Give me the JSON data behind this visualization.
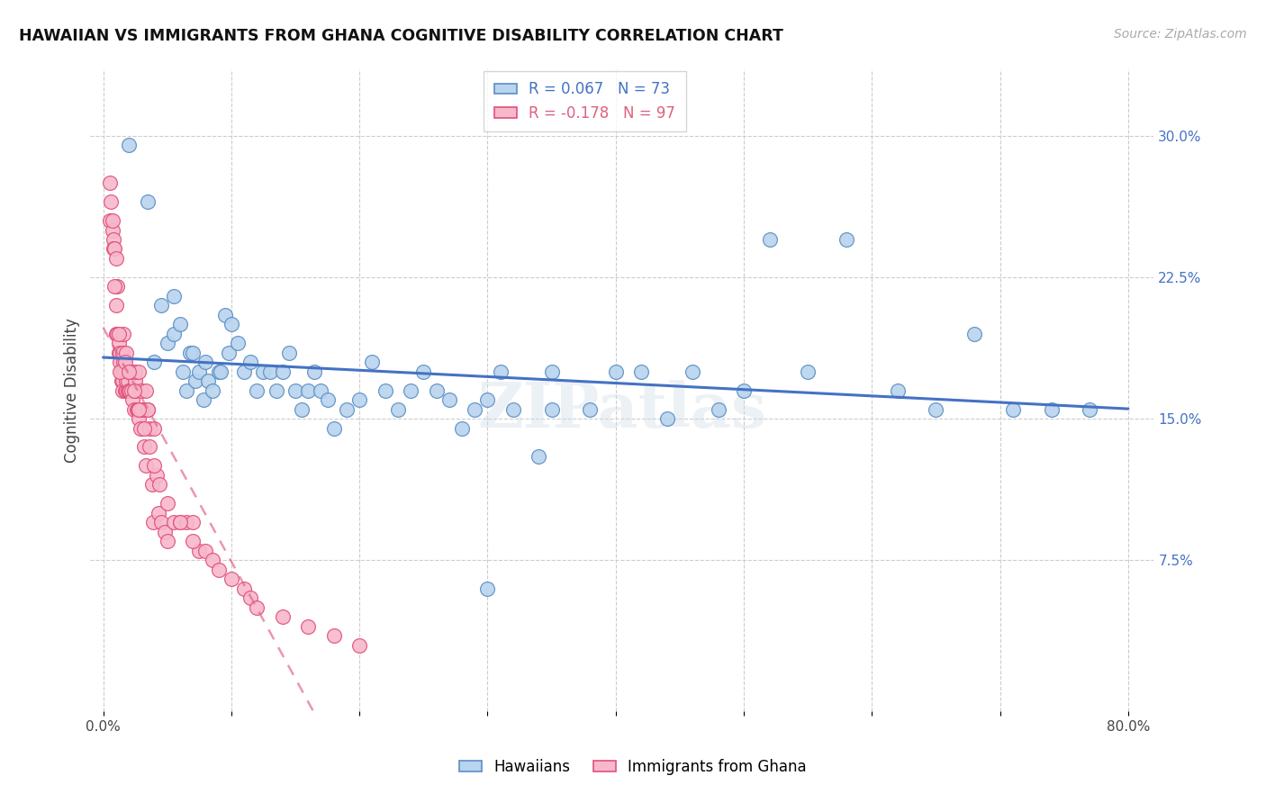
{
  "title": "HAWAIIAN VS IMMIGRANTS FROM GHANA COGNITIVE DISABILITY CORRELATION CHART",
  "source": "Source: ZipAtlas.com",
  "ylabel": "Cognitive Disability",
  "xlim": [
    -0.01,
    0.82
  ],
  "ylim": [
    -0.005,
    0.335
  ],
  "xtick_positions": [
    0.0,
    0.1,
    0.2,
    0.3,
    0.4,
    0.5,
    0.6,
    0.7,
    0.8
  ],
  "ytick_right_positions": [
    0.075,
    0.15,
    0.225,
    0.3
  ],
  "ytick_right_labels": [
    "7.5%",
    "15.0%",
    "22.5%",
    "30.0%"
  ],
  "legend1_label": "R = 0.067   N = 73",
  "legend2_label": "R = -0.178   N = 97",
  "hawaii_color_face": "#b8d4ee",
  "hawaii_color_edge": "#5b8ec4",
  "ghana_color_face": "#f8b8cc",
  "ghana_color_edge": "#e0507a",
  "trend_hawaii_color": "#4472c4",
  "trend_ghana_color": "#e06080",
  "watermark": "ZIPatlas",
  "hawaiians_x": [
    0.02,
    0.035,
    0.04,
    0.045,
    0.05,
    0.055,
    0.055,
    0.06,
    0.062,
    0.065,
    0.068,
    0.07,
    0.072,
    0.075,
    0.078,
    0.08,
    0.082,
    0.085,
    0.09,
    0.092,
    0.095,
    0.098,
    0.1,
    0.105,
    0.11,
    0.115,
    0.12,
    0.125,
    0.13,
    0.135,
    0.14,
    0.145,
    0.15,
    0.155,
    0.16,
    0.165,
    0.17,
    0.175,
    0.18,
    0.19,
    0.2,
    0.21,
    0.22,
    0.23,
    0.24,
    0.25,
    0.26,
    0.27,
    0.28,
    0.29,
    0.3,
    0.31,
    0.32,
    0.34,
    0.35,
    0.38,
    0.4,
    0.42,
    0.44,
    0.46,
    0.48,
    0.5,
    0.52,
    0.55,
    0.58,
    0.62,
    0.65,
    0.68,
    0.71,
    0.74,
    0.77,
    0.3,
    0.35
  ],
  "hawaiians_y": [
    0.295,
    0.265,
    0.18,
    0.21,
    0.19,
    0.215,
    0.195,
    0.2,
    0.175,
    0.165,
    0.185,
    0.185,
    0.17,
    0.175,
    0.16,
    0.18,
    0.17,
    0.165,
    0.175,
    0.175,
    0.205,
    0.185,
    0.2,
    0.19,
    0.175,
    0.18,
    0.165,
    0.175,
    0.175,
    0.165,
    0.175,
    0.185,
    0.165,
    0.155,
    0.165,
    0.175,
    0.165,
    0.16,
    0.145,
    0.155,
    0.16,
    0.18,
    0.165,
    0.155,
    0.165,
    0.175,
    0.165,
    0.16,
    0.145,
    0.155,
    0.16,
    0.175,
    0.155,
    0.13,
    0.155,
    0.155,
    0.175,
    0.175,
    0.15,
    0.175,
    0.155,
    0.165,
    0.245,
    0.175,
    0.245,
    0.165,
    0.155,
    0.195,
    0.155,
    0.155,
    0.155,
    0.06,
    0.175
  ],
  "ghana_x": [
    0.005,
    0.005,
    0.007,
    0.008,
    0.008,
    0.009,
    0.01,
    0.01,
    0.011,
    0.011,
    0.012,
    0.012,
    0.013,
    0.013,
    0.014,
    0.014,
    0.014,
    0.015,
    0.015,
    0.016,
    0.016,
    0.017,
    0.017,
    0.018,
    0.018,
    0.019,
    0.019,
    0.02,
    0.02,
    0.021,
    0.021,
    0.022,
    0.022,
    0.023,
    0.024,
    0.025,
    0.025,
    0.026,
    0.027,
    0.028,
    0.029,
    0.03,
    0.031,
    0.032,
    0.033,
    0.035,
    0.036,
    0.038,
    0.039,
    0.04,
    0.042,
    0.043,
    0.045,
    0.048,
    0.05,
    0.055,
    0.06,
    0.065,
    0.07,
    0.075,
    0.08,
    0.085,
    0.09,
    0.1,
    0.11,
    0.115,
    0.12,
    0.14,
    0.16,
    0.18,
    0.2,
    0.022,
    0.025,
    0.028,
    0.03,
    0.033,
    0.035,
    0.016,
    0.015,
    0.018,
    0.013,
    0.009,
    0.007,
    0.006,
    0.01,
    0.012,
    0.017,
    0.02,
    0.024,
    0.028,
    0.032,
    0.036,
    0.04,
    0.044,
    0.05,
    0.06,
    0.07
  ],
  "ghana_y": [
    0.275,
    0.255,
    0.25,
    0.245,
    0.24,
    0.24,
    0.235,
    0.195,
    0.195,
    0.22,
    0.185,
    0.19,
    0.185,
    0.18,
    0.175,
    0.175,
    0.17,
    0.17,
    0.165,
    0.18,
    0.175,
    0.165,
    0.175,
    0.165,
    0.17,
    0.165,
    0.17,
    0.165,
    0.175,
    0.165,
    0.175,
    0.175,
    0.165,
    0.16,
    0.155,
    0.165,
    0.17,
    0.155,
    0.155,
    0.15,
    0.145,
    0.165,
    0.155,
    0.135,
    0.125,
    0.155,
    0.145,
    0.115,
    0.095,
    0.145,
    0.12,
    0.1,
    0.095,
    0.09,
    0.085,
    0.095,
    0.095,
    0.095,
    0.095,
    0.08,
    0.08,
    0.075,
    0.07,
    0.065,
    0.06,
    0.055,
    0.05,
    0.045,
    0.04,
    0.035,
    0.03,
    0.175,
    0.175,
    0.175,
    0.155,
    0.165,
    0.155,
    0.195,
    0.185,
    0.185,
    0.175,
    0.22,
    0.255,
    0.265,
    0.21,
    0.195,
    0.18,
    0.175,
    0.165,
    0.155,
    0.145,
    0.135,
    0.125,
    0.115,
    0.105,
    0.095,
    0.085
  ]
}
